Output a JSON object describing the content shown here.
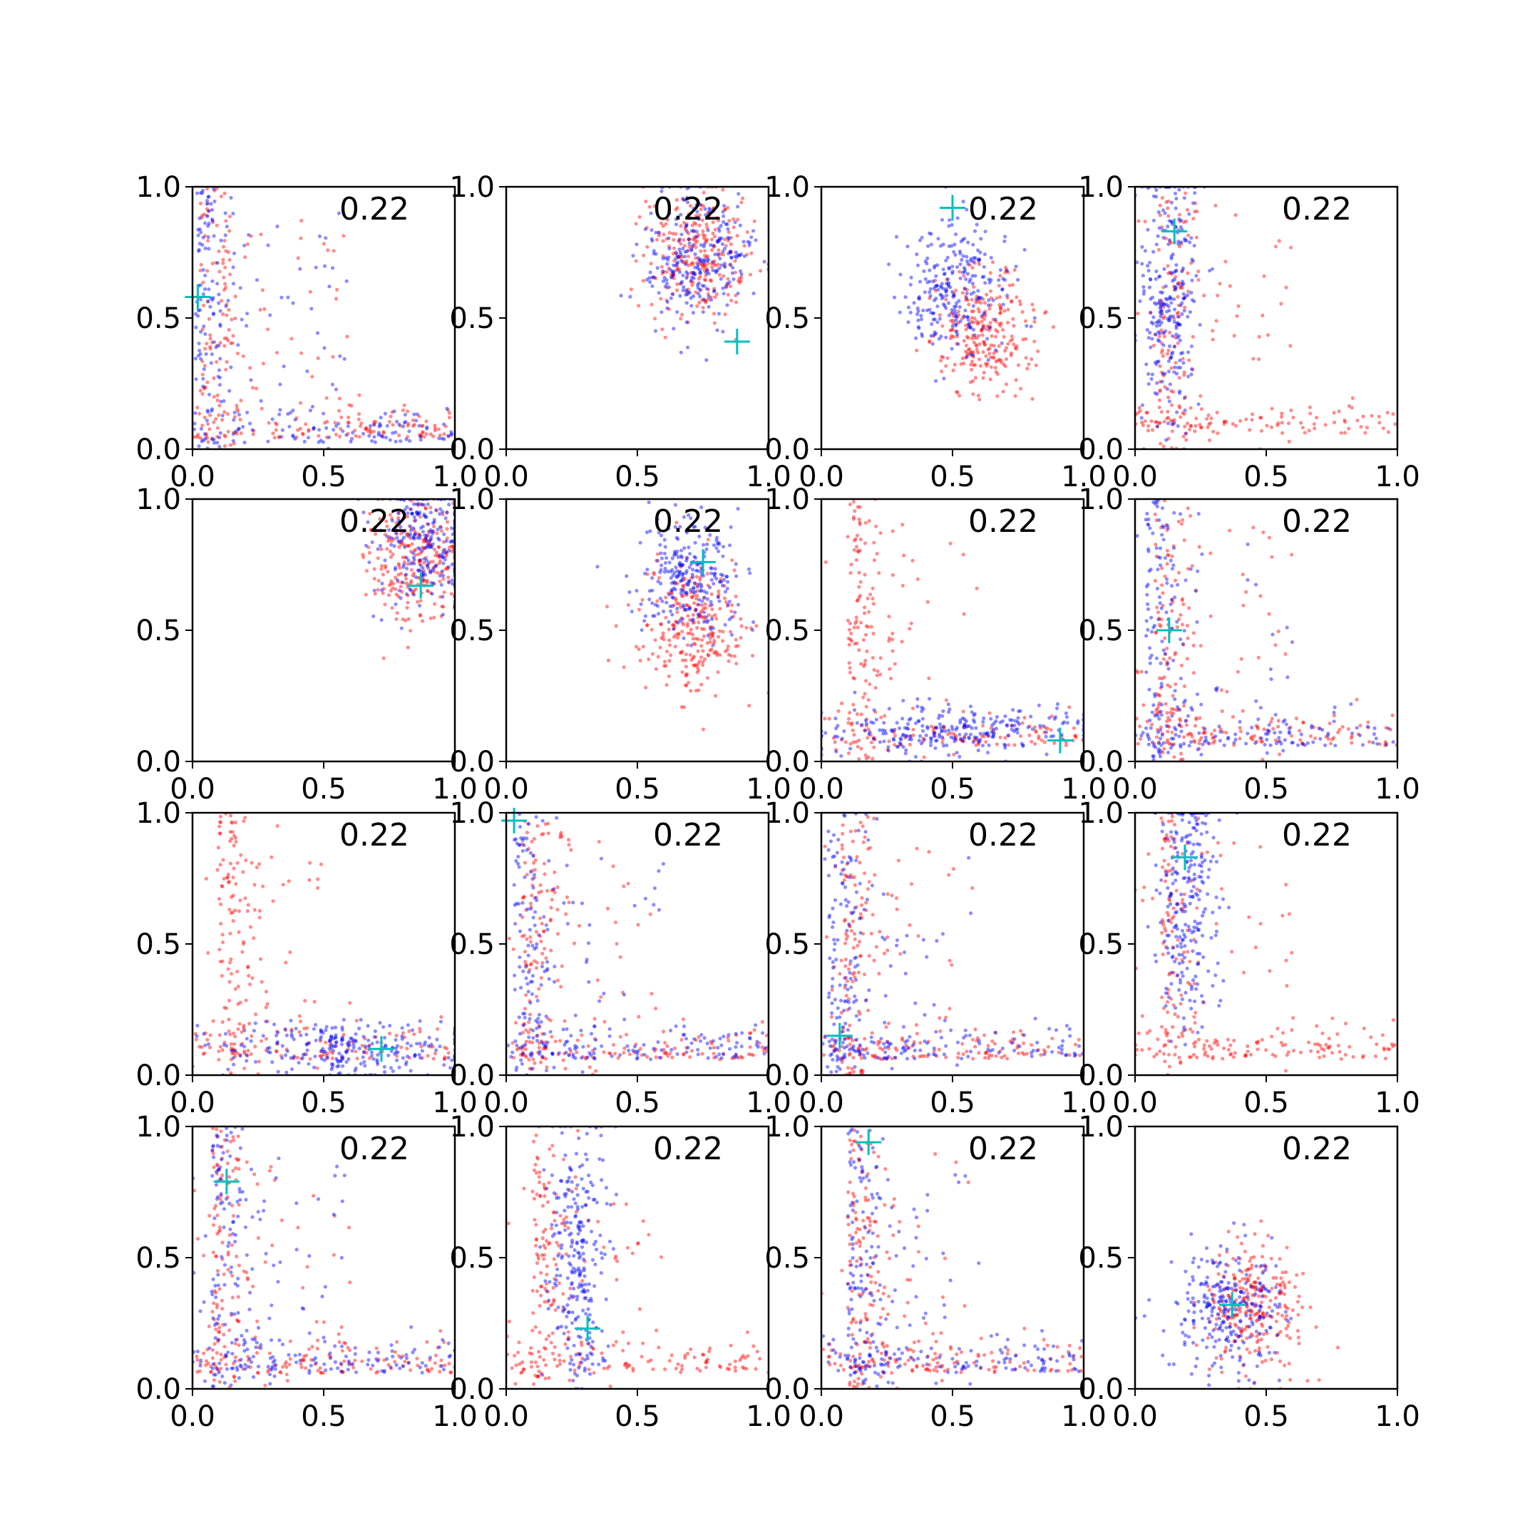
{
  "figure": {
    "rows": 4,
    "cols": 4,
    "colors": {
      "series_a": "#ff0000",
      "series_b": "#0000ff",
      "marker": "#00bfbf",
      "axes": "#000000",
      "background": "#ffffff"
    }
  },
  "chart_data": [
    {
      "type": "scatter",
      "xlim": [
        0,
        1
      ],
      "ylim": [
        0,
        1
      ],
      "xticks": [
        "0.0",
        "0.5",
        "1.0"
      ],
      "yticks": [
        "0.0",
        "0.5",
        "1.0"
      ],
      "annotation": "0.22",
      "grid": false,
      "marker": [
        0.02,
        0.58
      ],
      "series": [
        {
          "color": "#ff0000",
          "cluster": "L-shape",
          "center": [
            0.06,
            0.15
          ]
        },
        {
          "color": "#0000ff",
          "cluster": "L-shape",
          "center": [
            0.02,
            0.08
          ]
        }
      ]
    },
    {
      "type": "scatter",
      "xlim": [
        0,
        1
      ],
      "ylim": [
        0,
        1
      ],
      "xticks": [
        "0.0",
        "0.5",
        "1.0"
      ],
      "yticks": [
        "0.0",
        "0.5",
        "1.0"
      ],
      "annotation": "0.22",
      "grid": false,
      "marker": [
        0.88,
        0.41
      ],
      "series": [
        {
          "color": "#ff0000",
          "cluster": "blob",
          "center": [
            0.72,
            0.74
          ]
        },
        {
          "color": "#0000ff",
          "cluster": "blob",
          "center": [
            0.73,
            0.72
          ]
        }
      ]
    },
    {
      "type": "scatter",
      "xlim": [
        0,
        1
      ],
      "ylim": [
        0,
        1
      ],
      "xticks": [
        "0.0",
        "0.5",
        "1.0"
      ],
      "yticks": [
        "0.0",
        "0.5",
        "1.0"
      ],
      "annotation": "0.22",
      "grid": false,
      "marker": [
        0.5,
        0.92
      ],
      "series": [
        {
          "color": "#ff0000",
          "cluster": "blob",
          "center": [
            0.62,
            0.45
          ]
        },
        {
          "color": "#0000ff",
          "cluster": "blob",
          "center": [
            0.52,
            0.62
          ]
        }
      ]
    },
    {
      "type": "scatter",
      "xlim": [
        0,
        1
      ],
      "ylim": [
        0,
        1
      ],
      "xticks": [
        "0.0",
        "0.5",
        "1.0"
      ],
      "yticks": [
        "0.0",
        "0.5",
        "1.0"
      ],
      "annotation": "0.22",
      "grid": false,
      "marker": [
        0.15,
        0.83
      ],
      "series": [
        {
          "color": "#ff0000",
          "cluster": "L-shape",
          "center": [
            0.18,
            0.3
          ]
        },
        {
          "color": "#0000ff",
          "cluster": "vertical",
          "center": [
            0.13,
            0.55
          ]
        }
      ]
    },
    {
      "type": "scatter",
      "xlim": [
        0,
        1
      ],
      "ylim": [
        0,
        1
      ],
      "xticks": [
        "0.0",
        "0.5",
        "1.0"
      ],
      "yticks": [
        "0.0",
        "0.5",
        "1.0"
      ],
      "annotation": "0.22",
      "grid": false,
      "marker": [
        0.87,
        0.67
      ],
      "series": [
        {
          "color": "#ff0000",
          "cluster": "blob",
          "center": [
            0.85,
            0.75
          ]
        },
        {
          "color": "#0000ff",
          "cluster": "blob",
          "center": [
            0.88,
            0.85
          ]
        }
      ]
    },
    {
      "type": "scatter",
      "xlim": [
        0,
        1
      ],
      "ylim": [
        0,
        1
      ],
      "xticks": [
        "0.0",
        "0.5",
        "1.0"
      ],
      "yticks": [
        "0.0",
        "0.5",
        "1.0"
      ],
      "annotation": "0.22",
      "grid": false,
      "marker": [
        0.75,
        0.76
      ],
      "series": [
        {
          "color": "#ff0000",
          "cluster": "blob",
          "center": [
            0.72,
            0.5
          ]
        },
        {
          "color": "#0000ff",
          "cluster": "blob",
          "center": [
            0.7,
            0.7
          ]
        }
      ]
    },
    {
      "type": "scatter",
      "xlim": [
        0,
        1
      ],
      "ylim": [
        0,
        1
      ],
      "xticks": [
        "0.0",
        "0.5",
        "1.0"
      ],
      "yticks": [
        "0.0",
        "0.5",
        "1.0"
      ],
      "annotation": "0.22",
      "grid": false,
      "marker": [
        0.91,
        0.08
      ],
      "series": [
        {
          "color": "#ff0000",
          "cluster": "L-shape",
          "center": [
            0.2,
            0.35
          ]
        },
        {
          "color": "#0000ff",
          "cluster": "horizontal",
          "center": [
            0.5,
            0.12
          ]
        }
      ]
    },
    {
      "type": "scatter",
      "xlim": [
        0,
        1
      ],
      "ylim": [
        0,
        1
      ],
      "xticks": [
        "0.0",
        "0.5",
        "1.0"
      ],
      "yticks": [
        "0.0",
        "0.5",
        "1.0"
      ],
      "annotation": "0.22",
      "grid": false,
      "marker": [
        0.13,
        0.5
      ],
      "series": [
        {
          "color": "#ff0000",
          "cluster": "L-shape",
          "center": [
            0.15,
            0.3
          ]
        },
        {
          "color": "#0000ff",
          "cluster": "L-shape",
          "center": [
            0.08,
            0.4
          ]
        }
      ]
    },
    {
      "type": "scatter",
      "xlim": [
        0,
        1
      ],
      "ylim": [
        0,
        1
      ],
      "xticks": [
        "0.0",
        "0.5",
        "1.0"
      ],
      "yticks": [
        "0.0",
        "0.5",
        "1.0"
      ],
      "annotation": "0.22",
      "grid": false,
      "marker": [
        0.72,
        0.1
      ],
      "series": [
        {
          "color": "#ff0000",
          "cluster": "L-shape",
          "center": [
            0.35,
            0.5
          ]
        },
        {
          "color": "#0000ff",
          "cluster": "horizontal",
          "center": [
            0.6,
            0.1
          ]
        }
      ]
    },
    {
      "type": "scatter",
      "xlim": [
        0,
        1
      ],
      "ylim": [
        0,
        1
      ],
      "xticks": [
        "0.0",
        "0.5",
        "1.0"
      ],
      "yticks": [
        "0.0",
        "0.5",
        "1.0"
      ],
      "annotation": "0.22",
      "grid": false,
      "marker": [
        0.03,
        0.97
      ],
      "series": [
        {
          "color": "#ff0000",
          "cluster": "L-shape",
          "center": [
            0.12,
            0.35
          ]
        },
        {
          "color": "#0000ff",
          "cluster": "L-shape",
          "center": [
            0.06,
            0.3
          ]
        }
      ]
    },
    {
      "type": "scatter",
      "xlim": [
        0,
        1
      ],
      "ylim": [
        0,
        1
      ],
      "xticks": [
        "0.0",
        "0.5",
        "1.0"
      ],
      "yticks": [
        "0.0",
        "0.5",
        "1.0"
      ],
      "annotation": "0.22",
      "grid": false,
      "marker": [
        0.07,
        0.15
      ],
      "series": [
        {
          "color": "#ff0000",
          "cluster": "L-shape",
          "center": [
            0.15,
            0.35
          ]
        },
        {
          "color": "#0000ff",
          "cluster": "L-shape",
          "center": [
            0.05,
            0.35
          ]
        }
      ]
    },
    {
      "type": "scatter",
      "xlim": [
        0,
        1
      ],
      "ylim": [
        0,
        1
      ],
      "xticks": [
        "0.0",
        "0.5",
        "1.0"
      ],
      "yticks": [
        "0.0",
        "0.5",
        "1.0"
      ],
      "annotation": "0.22",
      "grid": false,
      "marker": [
        0.19,
        0.83
      ],
      "series": [
        {
          "color": "#ff0000",
          "cluster": "L-shape",
          "center": [
            0.3,
            0.35
          ]
        },
        {
          "color": "#0000ff",
          "cluster": "vertical",
          "center": [
            0.2,
            0.7
          ]
        }
      ]
    },
    {
      "type": "scatter",
      "xlim": [
        0,
        1
      ],
      "ylim": [
        0,
        1
      ],
      "xticks": [
        "0.0",
        "0.5",
        "1.0"
      ],
      "yticks": [
        "0.0",
        "0.5",
        "1.0"
      ],
      "annotation": "0.22",
      "grid": false,
      "marker": [
        0.13,
        0.79
      ],
      "series": [
        {
          "color": "#ff0000",
          "cluster": "L-shape",
          "center": [
            0.15,
            0.4
          ]
        },
        {
          "color": "#0000ff",
          "cluster": "L-shape",
          "center": [
            0.15,
            0.5
          ]
        }
      ]
    },
    {
      "type": "scatter",
      "xlim": [
        0,
        1
      ],
      "ylim": [
        0,
        1
      ],
      "xticks": [
        "0.0",
        "0.5",
        "1.0"
      ],
      "yticks": [
        "0.0",
        "0.5",
        "1.0"
      ],
      "annotation": "0.22",
      "grid": false,
      "marker": [
        0.31,
        0.23
      ],
      "series": [
        {
          "color": "#ff0000",
          "cluster": "L-shape",
          "center": [
            0.3,
            0.4
          ]
        },
        {
          "color": "#0000ff",
          "cluster": "vertical",
          "center": [
            0.28,
            0.5
          ]
        }
      ]
    },
    {
      "type": "scatter",
      "xlim": [
        0,
        1
      ],
      "ylim": [
        0,
        1
      ],
      "xticks": [
        "0.0",
        "0.5",
        "1.0"
      ],
      "yticks": [
        "0.0",
        "0.5",
        "1.0"
      ],
      "annotation": "0.22",
      "grid": false,
      "marker": [
        0.18,
        0.94
      ],
      "series": [
        {
          "color": "#ff0000",
          "cluster": "L-shape",
          "center": [
            0.2,
            0.4
          ]
        },
        {
          "color": "#0000ff",
          "cluster": "L-shape",
          "center": [
            0.3,
            0.35
          ]
        }
      ]
    },
    {
      "type": "scatter",
      "xlim": [
        0,
        1
      ],
      "ylim": [
        0,
        1
      ],
      "xticks": [
        "0.0",
        "0.5",
        "1.0"
      ],
      "yticks": [
        "0.0",
        "0.5",
        "1.0"
      ],
      "annotation": "0.22",
      "grid": false,
      "marker": [
        0.37,
        0.32
      ],
      "series": [
        {
          "color": "#ff0000",
          "cluster": "blob",
          "center": [
            0.45,
            0.3
          ]
        },
        {
          "color": "#0000ff",
          "cluster": "blob",
          "center": [
            0.35,
            0.3
          ]
        }
      ]
    }
  ]
}
